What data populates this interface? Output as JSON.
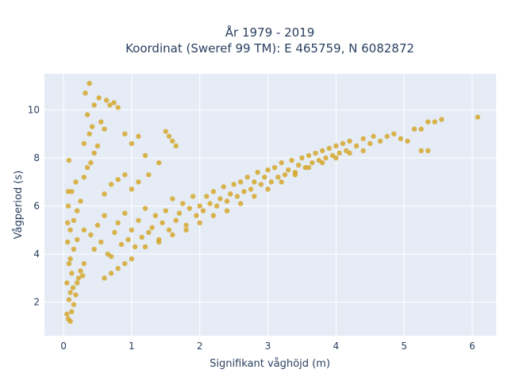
{
  "chart_data": {
    "type": "scatter",
    "title": "År 1979 - 2019",
    "subtitle": "Koordinat (Sweref 99 TM): E 465759, N 6082872",
    "xlabel": "Signifikant våghöjd (m)",
    "ylabel": "Vågperiod (s)",
    "xlim": [
      -0.28,
      6.35
    ],
    "ylim": [
      0.6,
      11.5
    ],
    "x_ticks": [
      0,
      1,
      2,
      3,
      4,
      5,
      6
    ],
    "y_ticks": [
      2,
      4,
      6,
      8,
      10
    ],
    "grid": true,
    "legend": "none",
    "marker_color": "#d4a421",
    "marker_opacity": 0.8,
    "plot_background": "#e5ecf6",
    "gridline_color": "#ffffff",
    "series": [
      {
        "points": [
          [
            0.05,
            1.5
          ],
          [
            0.07,
            1.3
          ],
          [
            0.1,
            1.2
          ],
          [
            0.12,
            1.6
          ],
          [
            0.15,
            1.9
          ],
          [
            0.08,
            2.1
          ],
          [
            0.1,
            2.4
          ],
          [
            0.14,
            2.6
          ],
          [
            0.18,
            2.3
          ],
          [
            0.2,
            2.8
          ],
          [
            0.22,
            3.0
          ],
          [
            0.25,
            3.3
          ],
          [
            0.28,
            3.1
          ],
          [
            0.3,
            3.6
          ],
          [
            0.12,
            3.2
          ],
          [
            0.1,
            3.8
          ],
          [
            0.15,
            4.2
          ],
          [
            0.2,
            4.6
          ],
          [
            0.1,
            5.0
          ],
          [
            0.15,
            5.4
          ],
          [
            0.2,
            5.8
          ],
          [
            0.25,
            6.2
          ],
          [
            0.12,
            6.6
          ],
          [
            0.18,
            7.0
          ],
          [
            0.3,
            7.2
          ],
          [
            0.35,
            7.6
          ],
          [
            0.4,
            7.8
          ],
          [
            0.45,
            8.2
          ],
          [
            0.5,
            8.5
          ],
          [
            0.3,
            8.6
          ],
          [
            0.38,
            9.0
          ],
          [
            0.42,
            9.3
          ],
          [
            0.55,
            9.5
          ],
          [
            0.6,
            9.2
          ],
          [
            0.35,
            9.8
          ],
          [
            0.45,
            10.2
          ],
          [
            0.38,
            11.1
          ],
          [
            0.32,
            10.7
          ],
          [
            0.52,
            10.5
          ],
          [
            0.63,
            10.4
          ],
          [
            0.68,
            10.2
          ],
          [
            0.74,
            10.3
          ],
          [
            0.8,
            10.1
          ],
          [
            0.9,
            9.0
          ],
          [
            1.0,
            8.6
          ],
          [
            1.1,
            8.9
          ],
          [
            1.2,
            8.1
          ],
          [
            1.25,
            7.3
          ],
          [
            1.4,
            7.8
          ],
          [
            1.5,
            9.1
          ],
          [
            1.6,
            8.7
          ],
          [
            1.65,
            8.5
          ],
          [
            1.55,
            8.9
          ],
          [
            0.3,
            5.0
          ],
          [
            0.4,
            4.8
          ],
          [
            0.45,
            4.2
          ],
          [
            0.5,
            5.2
          ],
          [
            0.55,
            4.5
          ],
          [
            0.6,
            5.6
          ],
          [
            0.65,
            4.0
          ],
          [
            0.7,
            3.9
          ],
          [
            0.75,
            4.9
          ],
          [
            0.8,
            5.3
          ],
          [
            0.85,
            4.4
          ],
          [
            0.9,
            5.7
          ],
          [
            0.95,
            4.6
          ],
          [
            1.0,
            5.0
          ],
          [
            1.05,
            4.3
          ],
          [
            1.1,
            5.4
          ],
          [
            1.15,
            4.7
          ],
          [
            1.2,
            5.9
          ],
          [
            1.25,
            4.9
          ],
          [
            1.3,
            5.1
          ],
          [
            1.35,
            5.6
          ],
          [
            1.4,
            4.6
          ],
          [
            1.45,
            5.3
          ],
          [
            1.5,
            5.8
          ],
          [
            1.55,
            5.0
          ],
          [
            1.6,
            6.3
          ],
          [
            1.65,
            5.4
          ],
          [
            1.7,
            5.7
          ],
          [
            1.75,
            6.1
          ],
          [
            1.8,
            5.2
          ],
          [
            1.85,
            5.9
          ],
          [
            1.9,
            6.4
          ],
          [
            1.95,
            5.6
          ],
          [
            2.0,
            6.0
          ],
          [
            2.05,
            5.8
          ],
          [
            2.1,
            6.4
          ],
          [
            2.15,
            6.1
          ],
          [
            2.2,
            6.6
          ],
          [
            2.25,
            6.0
          ],
          [
            2.3,
            6.3
          ],
          [
            2.35,
            6.8
          ],
          [
            2.4,
            6.2
          ],
          [
            2.45,
            6.5
          ],
          [
            2.5,
            6.9
          ],
          [
            2.55,
            6.4
          ],
          [
            2.6,
            7.0
          ],
          [
            2.65,
            6.6
          ],
          [
            2.7,
            7.2
          ],
          [
            2.75,
            6.7
          ],
          [
            2.8,
            7.0
          ],
          [
            2.85,
            7.4
          ],
          [
            2.9,
            6.9
          ],
          [
            2.95,
            7.2
          ],
          [
            3.0,
            7.5
          ],
          [
            3.05,
            7.0
          ],
          [
            3.1,
            7.6
          ],
          [
            3.15,
            7.2
          ],
          [
            3.2,
            7.8
          ],
          [
            3.25,
            7.3
          ],
          [
            3.3,
            7.5
          ],
          [
            3.35,
            7.9
          ],
          [
            3.4,
            7.4
          ],
          [
            3.45,
            7.7
          ],
          [
            3.5,
            8.0
          ],
          [
            3.55,
            7.6
          ],
          [
            3.6,
            8.1
          ],
          [
            3.65,
            7.8
          ],
          [
            3.7,
            8.2
          ],
          [
            3.75,
            7.9
          ],
          [
            3.8,
            8.3
          ],
          [
            3.85,
            8.0
          ],
          [
            3.9,
            8.4
          ],
          [
            3.95,
            8.1
          ],
          [
            4.0,
            8.5
          ],
          [
            4.05,
            8.2
          ],
          [
            4.1,
            8.6
          ],
          [
            4.15,
            8.3
          ],
          [
            4.2,
            8.7
          ],
          [
            4.3,
            8.5
          ],
          [
            4.4,
            8.8
          ],
          [
            4.5,
            8.6
          ],
          [
            4.55,
            8.9
          ],
          [
            4.65,
            8.7
          ],
          [
            4.75,
            8.9
          ],
          [
            4.85,
            9.0
          ],
          [
            4.95,
            8.8
          ],
          [
            5.05,
            8.7
          ],
          [
            5.15,
            9.2
          ],
          [
            5.25,
            9.2
          ],
          [
            5.35,
            9.5
          ],
          [
            5.45,
            9.5
          ],
          [
            5.55,
            9.6
          ],
          [
            5.35,
            8.3
          ],
          [
            5.25,
            8.3
          ],
          [
            6.08,
            9.7
          ],
          [
            0.6,
            6.5
          ],
          [
            0.7,
            6.9
          ],
          [
            0.8,
            7.1
          ],
          [
            0.9,
            7.3
          ],
          [
            1.0,
            6.7
          ],
          [
            1.1,
            7.0
          ],
          [
            0.6,
            3.0
          ],
          [
            0.7,
            3.2
          ],
          [
            0.8,
            3.4
          ],
          [
            0.9,
            3.6
          ],
          [
            1.0,
            3.8
          ],
          [
            1.2,
            4.3
          ],
          [
            1.4,
            4.5
          ],
          [
            1.6,
            4.8
          ],
          [
            1.8,
            5.0
          ],
          [
            2.0,
            5.3
          ],
          [
            2.2,
            5.6
          ],
          [
            2.4,
            5.8
          ],
          [
            2.6,
            6.1
          ],
          [
            2.8,
            6.4
          ],
          [
            3.0,
            6.7
          ],
          [
            3.2,
            7.0
          ],
          [
            3.4,
            7.3
          ],
          [
            3.6,
            7.6
          ],
          [
            3.8,
            7.8
          ],
          [
            4.0,
            8.0
          ],
          [
            4.2,
            8.2
          ],
          [
            4.4,
            8.3
          ],
          [
            0.05,
            2.8
          ],
          [
            0.06,
            4.5
          ],
          [
            0.07,
            6.0
          ],
          [
            0.08,
            7.9
          ],
          [
            0.07,
            6.6
          ],
          [
            0.06,
            5.3
          ],
          [
            0.08,
            3.6
          ]
        ]
      }
    ]
  }
}
